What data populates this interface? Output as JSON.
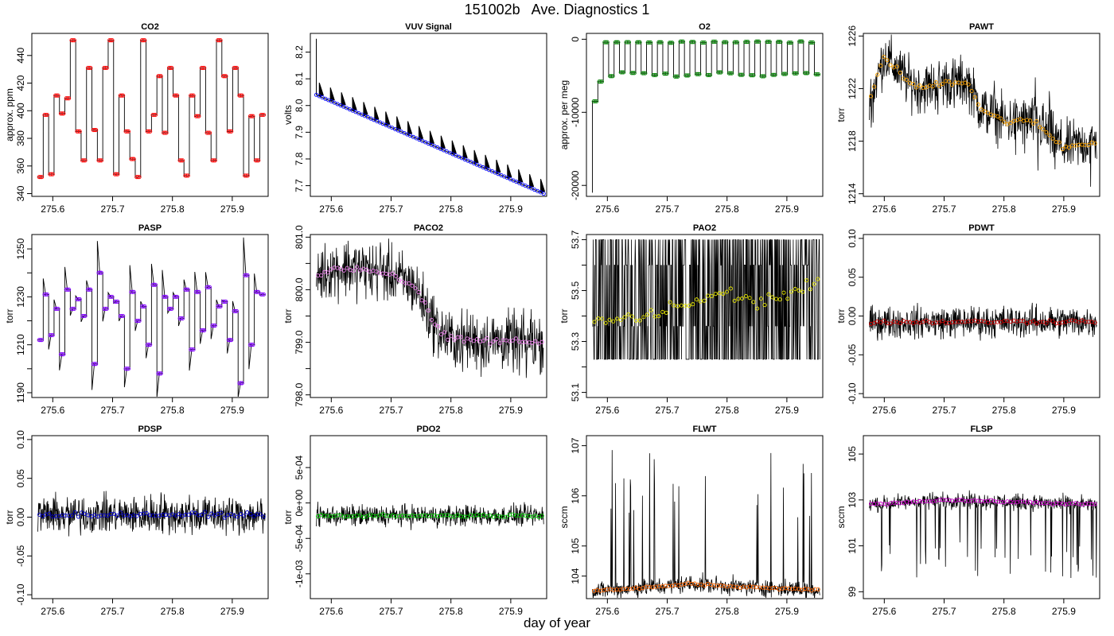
{
  "title": "151002b   Ave. Diagnostics 1",
  "xlabel": "day of year",
  "chart_data": [
    {
      "type": "line",
      "title": "CO2",
      "ylabel": "approx. ppm",
      "xlim": [
        275.565,
        275.96
      ],
      "ylim": [
        338,
        456
      ],
      "xticks": [
        275.6,
        275.7,
        275.8,
        275.9
      ],
      "yticks": [
        340,
        360,
        380,
        400,
        420,
        440
      ],
      "ytick_labels": [
        "340",
        "360",
        "380",
        "400",
        "420",
        "440"
      ],
      "mode": "step",
      "marker_color": "#ff0000",
      "x_start": 275.575,
      "x_end": 275.955,
      "levels": [
        352,
        397,
        354,
        411,
        398,
        409,
        451,
        385,
        364,
        431,
        386,
        364,
        431,
        451,
        354,
        411,
        385,
        365,
        352,
        451,
        385,
        397,
        425,
        384,
        431,
        411,
        364,
        353,
        411,
        396,
        431,
        384,
        364,
        451,
        425,
        385,
        431,
        411,
        353,
        396,
        364,
        397
      ],
      "steps": 42
    },
    {
      "type": "line",
      "title": "VUV Signal",
      "ylabel": "volts",
      "xlim": [
        275.565,
        275.96
      ],
      "ylim": [
        7.66,
        8.27
      ],
      "xticks": [
        275.6,
        275.7,
        275.8,
        275.9
      ],
      "yticks": [
        7.7,
        7.8,
        7.9,
        8.0,
        8.1,
        8.2
      ],
      "ytick_labels": [
        "7.7",
        "7.8",
        "7.9",
        "8.0",
        "8.1",
        "8.2"
      ],
      "mode": "decay",
      "marker_color": "#0000ff",
      "y_start": 8.04,
      "y_end": 7.67,
      "x_start": 275.575,
      "x_end": 275.955,
      "spikes": 21,
      "spike_height": 0.05,
      "initial_spike": 8.25
    },
    {
      "type": "line",
      "title": "O2",
      "ylabel": "approx. per meg",
      "xlim": [
        275.565,
        275.96
      ],
      "ylim": [
        -21500,
        800
      ],
      "xticks": [
        275.6,
        275.7,
        275.8,
        275.9
      ],
      "yticks": [
        -20000,
        -10000,
        0
      ],
      "ytick_labels": [
        "-20000",
        "-10000",
        "0"
      ],
      "mode": "o2",
      "marker_color": "#008000",
      "x_start": 275.575,
      "x_end": 275.955,
      "high": -400,
      "low": -4800,
      "initial": -21000,
      "steps": 42
    },
    {
      "type": "line",
      "title": "PAWT",
      "ylabel": "torr",
      "xlim": [
        275.565,
        275.96
      ],
      "ylim": [
        1213.8,
        1226.2
      ],
      "xticks": [
        275.6,
        275.7,
        275.8,
        275.9
      ],
      "yticks": [
        1214,
        1218,
        1222,
        1226
      ],
      "ytick_labels": [
        "1214",
        "1218",
        "1222",
        "1226"
      ],
      "mode": "noise",
      "marker_color": "#ffa500",
      "x_start": 275.575,
      "x_end": 275.955,
      "trend": [
        [
          275.575,
          1221
        ],
        [
          275.6,
          1224.5
        ],
        [
          275.64,
          1222.5
        ],
        [
          275.66,
          1222
        ],
        [
          275.7,
          1222.5
        ],
        [
          275.74,
          1222.5
        ],
        [
          275.76,
          1220.5
        ],
        [
          275.8,
          1219.5
        ],
        [
          275.85,
          1219.5
        ],
        [
          275.9,
          1217.5
        ],
        [
          275.955,
          1218
        ]
      ],
      "noise": 2.8,
      "spike_count": 14,
      "spike_size": 3.5
    },
    {
      "type": "line",
      "title": "PASP",
      "ylabel": "torr",
      "xlim": [
        275.565,
        275.96
      ],
      "ylim": [
        1188,
        1256
      ],
      "xticks": [
        275.6,
        275.7,
        275.8,
        275.9
      ],
      "yticks": [
        1190,
        1210,
        1230,
        1250
      ],
      "ytick_labels": [
        "1190",
        "1210",
        "1230",
        "1250"
      ],
      "minor_yticks": [
        1200,
        1220,
        1240
      ],
      "mode": "step",
      "marker_color": "#8000ff",
      "x_start": 275.575,
      "x_end": 275.955,
      "levels": [
        1212,
        1231,
        1214,
        1225,
        1206,
        1233,
        1225,
        1229,
        1222,
        1233,
        1202,
        1240,
        1225,
        1230,
        1228,
        1222,
        1200,
        1232,
        1220,
        1226,
        1210,
        1235,
        1198,
        1230,
        1225,
        1230,
        1221,
        1233,
        1208,
        1232,
        1216,
        1234,
        1218,
        1226,
        1228,
        1212,
        1224,
        1194,
        1239,
        1210,
        1232,
        1231
      ],
      "steps": 42,
      "overshoot": true
    },
    {
      "type": "line",
      "title": "PACO2",
      "ylabel": "torr",
      "xlim": [
        275.565,
        275.96
      ],
      "ylim": [
        797.95,
        801.05
      ],
      "xticks": [
        275.6,
        275.7,
        275.8,
        275.9
      ],
      "yticks": [
        798.0,
        799.0,
        800.0,
        801.0
      ],
      "ytick_labels": [
        "798.0",
        "799.0",
        "800.0",
        "801.0"
      ],
      "minor_yticks": [
        798.5,
        799.5,
        800.5
      ],
      "mode": "noise",
      "marker_color": "#ee82ee",
      "x_start": 275.575,
      "x_end": 275.955,
      "trend": [
        [
          275.575,
          800.25
        ],
        [
          275.6,
          800.4
        ],
        [
          275.65,
          800.4
        ],
        [
          275.7,
          800.3
        ],
        [
          275.74,
          800.05
        ],
        [
          275.78,
          799.2
        ],
        [
          275.8,
          799.05
        ],
        [
          275.955,
          799.0
        ]
      ],
      "noise": 0.8,
      "spike_count": 10,
      "spike_size": 0.7
    },
    {
      "type": "line",
      "title": "PAO2",
      "ylabel": "torr",
      "xlim": [
        275.565,
        275.96
      ],
      "ylim": [
        53.08,
        53.72
      ],
      "xticks": [
        275.6,
        275.7,
        275.8,
        275.9
      ],
      "yticks": [
        53.1,
        53.3,
        53.5,
        53.7
      ],
      "ytick_labels": [
        "53.1",
        "53.3",
        "53.5",
        "53.7"
      ],
      "minor_yticks": [
        53.2,
        53.4,
        53.6
      ],
      "mode": "quantized",
      "marker_color": "#e8e800",
      "x_start": 275.575,
      "x_end": 275.955,
      "band": [
        53.23,
        53.7
      ],
      "trend": [
        [
          275.575,
          53.38
        ],
        [
          275.65,
          53.39
        ],
        [
          275.75,
          53.46
        ],
        [
          275.8,
          53.49
        ],
        [
          275.85,
          53.45
        ],
        [
          275.955,
          53.53
        ]
      ],
      "scatter": 0.04
    },
    {
      "type": "line",
      "title": "PDWT",
      "ylabel": "torr",
      "xlim": [
        275.565,
        275.96
      ],
      "ylim": [
        -0.105,
        0.105
      ],
      "xticks": [
        275.6,
        275.7,
        275.8,
        275.9
      ],
      "yticks": [
        -0.1,
        -0.05,
        0.0,
        0.05,
        0.1
      ],
      "ytick_labels": [
        "-0.10",
        "-0.05",
        "0.00",
        "0.05",
        "0.10"
      ],
      "mode": "noise",
      "marker_color": "#cc0000",
      "x_start": 275.575,
      "x_end": 275.955,
      "trend": [
        [
          275.575,
          -0.008
        ],
        [
          275.955,
          -0.007
        ]
      ],
      "noise": 0.03,
      "spike_count": 0,
      "spike_size": 0
    },
    {
      "type": "line",
      "title": "PDSP",
      "ylabel": "torr",
      "xlim": [
        275.565,
        275.96
      ],
      "ylim": [
        -0.105,
        0.105
      ],
      "xticks": [
        275.6,
        275.7,
        275.8,
        275.9
      ],
      "yticks": [
        -0.1,
        -0.05,
        0.0,
        0.05,
        0.1
      ],
      "ytick_labels": [
        "-0.10",
        "-0.05",
        "0.00",
        "0.05",
        "0.10"
      ],
      "mode": "noise",
      "marker_color": "#0000cc",
      "x_start": 275.575,
      "x_end": 275.955,
      "trend": [
        [
          275.575,
          0.003
        ],
        [
          275.955,
          0.003
        ]
      ],
      "noise": 0.035,
      "spike_count": 14,
      "spike_size": 0.03
    },
    {
      "type": "line",
      "title": "PDO2",
      "ylabel": "torr",
      "xlim": [
        275.565,
        275.96
      ],
      "ylim": [
        -0.00135,
        0.00095
      ],
      "xticks": [
        275.6,
        275.7,
        275.8,
        275.9
      ],
      "yticks": [
        -0.001,
        -0.0005,
        0.0,
        0.0005
      ],
      "ytick_labels": [
        "-1e-03",
        "-5e-04",
        "0e+00",
        "5e-04"
      ],
      "mode": "noise",
      "marker_color": "#00cc00",
      "x_start": 275.575,
      "x_end": 275.955,
      "trend": [
        [
          275.575,
          -0.00018
        ],
        [
          275.955,
          -0.00018
        ]
      ],
      "noise": 0.00022,
      "spike_count": 0,
      "spike_size": 0
    },
    {
      "type": "line",
      "title": "FLWT",
      "ylabel": "sccm",
      "xlim": [
        275.565,
        275.96
      ],
      "ylim": [
        103.95,
        107.2
      ],
      "xticks": [
        275.6,
        275.7,
        275.8,
        275.9
      ],
      "yticks": [
        104.4,
        105,
        106,
        107
      ],
      "ytick_labels": [
        "104",
        "105",
        "106",
        "107"
      ],
      "tick_label_values": [
        104.4,
        105,
        106,
        107
      ],
      "mode": "noise",
      "marker_color": "#ff6600",
      "x_start": 275.575,
      "x_end": 275.955,
      "trend": [
        [
          275.575,
          104.1
        ],
        [
          275.7,
          104.2
        ],
        [
          275.74,
          104.25
        ],
        [
          275.8,
          104.2
        ],
        [
          275.955,
          104.12
        ]
      ],
      "noise": 0.25,
      "spike_count": 26,
      "spike_size": 2.8,
      "spike_dir": 1
    },
    {
      "type": "line",
      "title": "FLSP",
      "ylabel": "sccm",
      "xlim": [
        275.565,
        275.96
      ],
      "ylim": [
        98.7,
        105.8
      ],
      "xticks": [
        275.6,
        275.7,
        275.8,
        275.9
      ],
      "yticks": [
        99,
        101,
        103,
        105
      ],
      "ytick_labels": [
        "99",
        "101",
        "103",
        "105"
      ],
      "mode": "noise",
      "marker_color": "#cc00cc",
      "x_start": 275.575,
      "x_end": 275.955,
      "trend": [
        [
          275.575,
          102.8
        ],
        [
          275.7,
          103.0
        ],
        [
          275.955,
          102.8
        ]
      ],
      "noise": 0.5,
      "spike_count": 40,
      "spike_size": 3.5,
      "spike_dir": -1
    }
  ]
}
